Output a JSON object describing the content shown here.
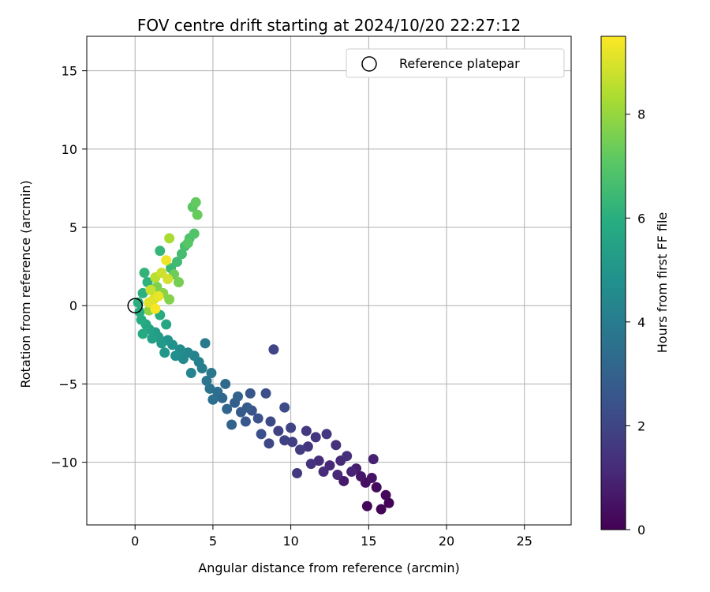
{
  "chart_data": {
    "type": "scatter",
    "title": "FOV centre drift starting at 2024/10/20 22:27:12",
    "xlabel": "Angular distance from reference (arcmin)",
    "ylabel": "Rotation from reference (arcmin)",
    "xlim": [
      -3.1,
      28.0
    ],
    "ylim": [
      -14.0,
      17.2
    ],
    "xticks": [
      0,
      5,
      10,
      15,
      20,
      25
    ],
    "yticks": [
      -10,
      -5,
      0,
      5,
      10,
      15
    ],
    "grid": true,
    "legend": {
      "position": "top-right",
      "label": "Reference platepar"
    },
    "reference_point": {
      "x": 0,
      "y": 0
    },
    "colorbar": {
      "label": "Hours from first FF file",
      "range": [
        0,
        9.5
      ],
      "ticks": [
        0,
        2,
        4,
        6,
        8
      ],
      "colormap": "viridis"
    },
    "points": [
      {
        "x": 16.3,
        "y": -12.6,
        "t": 0.05
      },
      {
        "x": 15.8,
        "y": -13.0,
        "t": 0.1
      },
      {
        "x": 14.9,
        "y": -12.8,
        "t": 0.15
      },
      {
        "x": 16.1,
        "y": -12.1,
        "t": 0.2
      },
      {
        "x": 15.5,
        "y": -11.6,
        "t": 0.3
      },
      {
        "x": 14.8,
        "y": -11.3,
        "t": 0.4
      },
      {
        "x": 15.2,
        "y": -11.0,
        "t": 0.5
      },
      {
        "x": 14.5,
        "y": -10.9,
        "t": 0.6
      },
      {
        "x": 13.4,
        "y": -11.2,
        "t": 0.7
      },
      {
        "x": 14.2,
        "y": -10.4,
        "t": 0.8
      },
      {
        "x": 15.3,
        "y": -9.8,
        "t": 0.9
      },
      {
        "x": 13.9,
        "y": -10.6,
        "t": 1.0
      },
      {
        "x": 13.0,
        "y": -10.8,
        "t": 1.05
      },
      {
        "x": 12.5,
        "y": -10.2,
        "t": 1.1
      },
      {
        "x": 13.2,
        "y": -9.9,
        "t": 1.15
      },
      {
        "x": 12.1,
        "y": -10.6,
        "t": 1.2
      },
      {
        "x": 11.8,
        "y": -9.9,
        "t": 1.25
      },
      {
        "x": 13.6,
        "y": -9.6,
        "t": 1.3
      },
      {
        "x": 12.9,
        "y": -8.9,
        "t": 1.35
      },
      {
        "x": 11.3,
        "y": -10.1,
        "t": 1.4
      },
      {
        "x": 11.1,
        "y": -9.0,
        "t": 1.45
      },
      {
        "x": 11.6,
        "y": -8.4,
        "t": 1.5
      },
      {
        "x": 12.3,
        "y": -8.2,
        "t": 1.55
      },
      {
        "x": 11.0,
        "y": -8.0,
        "t": 1.6
      },
      {
        "x": 10.4,
        "y": -10.7,
        "t": 1.65
      },
      {
        "x": 10.6,
        "y": -9.2,
        "t": 1.7
      },
      {
        "x": 10.1,
        "y": -8.7,
        "t": 1.8
      },
      {
        "x": 9.6,
        "y": -8.6,
        "t": 1.85
      },
      {
        "x": 9.2,
        "y": -8.0,
        "t": 1.9
      },
      {
        "x": 10.0,
        "y": -7.8,
        "t": 1.95
      },
      {
        "x": 8.9,
        "y": -2.8,
        "t": 2.0
      },
      {
        "x": 8.6,
        "y": -8.8,
        "t": 2.1
      },
      {
        "x": 8.7,
        "y": -7.4,
        "t": 2.15
      },
      {
        "x": 9.6,
        "y": -6.5,
        "t": 2.2
      },
      {
        "x": 8.4,
        "y": -5.6,
        "t": 2.3
      },
      {
        "x": 8.1,
        "y": -8.2,
        "t": 2.35
      },
      {
        "x": 7.9,
        "y": -7.2,
        "t": 2.4
      },
      {
        "x": 7.5,
        "y": -6.7,
        "t": 2.5
      },
      {
        "x": 7.4,
        "y": -5.6,
        "t": 2.55
      },
      {
        "x": 7.1,
        "y": -7.4,
        "t": 2.6
      },
      {
        "x": 6.8,
        "y": -6.8,
        "t": 2.7
      },
      {
        "x": 7.2,
        "y": -6.5,
        "t": 2.8
      },
      {
        "x": 6.4,
        "y": -6.2,
        "t": 2.9
      },
      {
        "x": 6.6,
        "y": -5.8,
        "t": 3.0
      },
      {
        "x": 6.2,
        "y": -7.6,
        "t": 3.05
      },
      {
        "x": 5.9,
        "y": -6.6,
        "t": 3.1
      },
      {
        "x": 5.6,
        "y": -5.9,
        "t": 3.2
      },
      {
        "x": 5.8,
        "y": -5.0,
        "t": 3.3
      },
      {
        "x": 5.3,
        "y": -5.5,
        "t": 3.4
      },
      {
        "x": 5.0,
        "y": -6.0,
        "t": 3.5
      },
      {
        "x": 4.8,
        "y": -5.3,
        "t": 3.6
      },
      {
        "x": 4.6,
        "y": -4.8,
        "t": 3.7
      },
      {
        "x": 4.9,
        "y": -4.3,
        "t": 3.8
      },
      {
        "x": 4.5,
        "y": -2.4,
        "t": 3.9
      },
      {
        "x": 4.3,
        "y": -4.0,
        "t": 4.0
      },
      {
        "x": 4.1,
        "y": -3.6,
        "t": 4.1
      },
      {
        "x": 3.8,
        "y": -3.2,
        "t": 4.2
      },
      {
        "x": 3.6,
        "y": -4.3,
        "t": 4.3
      },
      {
        "x": 3.4,
        "y": -3.0,
        "t": 4.4
      },
      {
        "x": 3.1,
        "y": -3.4,
        "t": 4.5
      },
      {
        "x": 2.9,
        "y": -2.8,
        "t": 4.6
      },
      {
        "x": 2.6,
        "y": -3.2,
        "t": 4.7
      },
      {
        "x": 2.4,
        "y": -2.5,
        "t": 4.8
      },
      {
        "x": 2.1,
        "y": -2.2,
        "t": 4.9
      },
      {
        "x": 1.9,
        "y": -3.0,
        "t": 5.0
      },
      {
        "x": 1.7,
        "y": -2.4,
        "t": 5.1
      },
      {
        "x": 1.5,
        "y": -2.0,
        "t": 5.2
      },
      {
        "x": 1.3,
        "y": -1.7,
        "t": 5.3
      },
      {
        "x": 1.1,
        "y": -2.1,
        "t": 5.4
      },
      {
        "x": 0.9,
        "y": -1.5,
        "t": 5.5
      },
      {
        "x": 2.0,
        "y": -1.2,
        "t": 5.6
      },
      {
        "x": 0.7,
        "y": -1.2,
        "t": 5.7
      },
      {
        "x": 0.5,
        "y": -1.8,
        "t": 5.8
      },
      {
        "x": 0.4,
        "y": -0.9,
        "t": 5.85
      },
      {
        "x": 1.6,
        "y": -0.6,
        "t": 5.9
      },
      {
        "x": 0.3,
        "y": -0.4,
        "t": 5.95
      },
      {
        "x": 0.2,
        "y": 0.2,
        "t": 6.0
      },
      {
        "x": 0.5,
        "y": 0.8,
        "t": 6.05
      },
      {
        "x": 0.8,
        "y": 1.5,
        "t": 6.1
      },
      {
        "x": 0.6,
        "y": 2.1,
        "t": 6.2
      },
      {
        "x": 1.6,
        "y": 3.5,
        "t": 6.3
      },
      {
        "x": 2.3,
        "y": 2.4,
        "t": 6.4
      },
      {
        "x": 2.7,
        "y": 2.8,
        "t": 6.5
      },
      {
        "x": 3.0,
        "y": 3.3,
        "t": 6.6
      },
      {
        "x": 3.2,
        "y": 3.8,
        "t": 6.7
      },
      {
        "x": 3.5,
        "y": 4.3,
        "t": 6.8
      },
      {
        "x": 3.8,
        "y": 4.6,
        "t": 6.9
      },
      {
        "x": 3.4,
        "y": 4.0,
        "t": 7.0
      },
      {
        "x": 3.7,
        "y": 6.3,
        "t": 7.1
      },
      {
        "x": 3.9,
        "y": 6.6,
        "t": 7.2
      },
      {
        "x": 4.0,
        "y": 5.8,
        "t": 7.3
      },
      {
        "x": 2.5,
        "y": 2.0,
        "t": 7.4
      },
      {
        "x": 2.8,
        "y": 1.5,
        "t": 7.5
      },
      {
        "x": 1.4,
        "y": 1.2,
        "t": 7.6
      },
      {
        "x": 2.2,
        "y": 0.4,
        "t": 7.7
      },
      {
        "x": 1.8,
        "y": 0.8,
        "t": 7.8
      },
      {
        "x": 0.9,
        "y": -0.3,
        "t": 7.9
      },
      {
        "x": 2.2,
        "y": 4.3,
        "t": 8.3
      },
      {
        "x": 1.3,
        "y": 1.8,
        "t": 8.5
      },
      {
        "x": 1.0,
        "y": 1.0,
        "t": 8.7
      },
      {
        "x": 1.7,
        "y": 2.1,
        "t": 8.8
      },
      {
        "x": 2.1,
        "y": 1.7,
        "t": 8.9
      },
      {
        "x": 1.2,
        "y": 0.4,
        "t": 9.0
      },
      {
        "x": 0.9,
        "y": 0.2,
        "t": 9.1
      },
      {
        "x": 1.5,
        "y": 0.6,
        "t": 9.2
      },
      {
        "x": 2.0,
        "y": 2.9,
        "t": 9.3
      },
      {
        "x": 1.3,
        "y": -0.2,
        "t": 9.4
      }
    ]
  }
}
